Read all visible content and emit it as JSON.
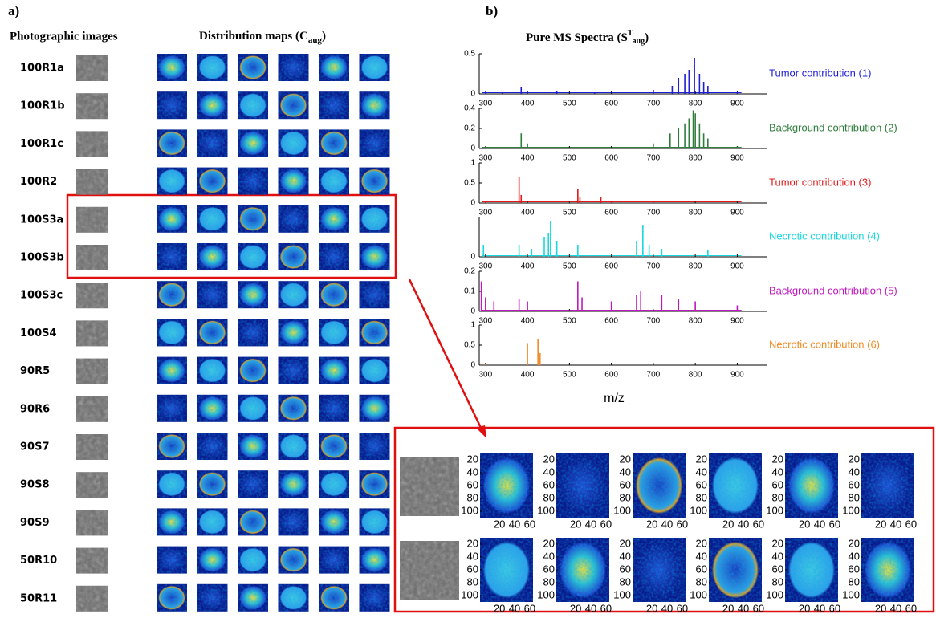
{
  "panel_a": {
    "label": "a)",
    "photo_heading": "Photographic images",
    "maps_heading": "Distribution maps (C",
    "maps_heading_sub": "aug",
    "maps_heading_end": ")",
    "samples": [
      "100R1a",
      "100R1b",
      "100R1c",
      "100R2",
      "100S3a",
      "100S3b",
      "100S3c",
      "100S4",
      "90R5",
      "90R6",
      "90S7",
      "90S8",
      "90S9",
      "50R10",
      "50R11"
    ]
  },
  "inset": {
    "yticks": [
      20,
      40,
      60,
      80,
      100
    ],
    "xticks": [
      20,
      40,
      60
    ]
  },
  "panel_b": {
    "label": "b)",
    "title": "Pure MS Spectra (S",
    "title_sup": "T",
    "title_sub": "aug",
    "title_end": ")",
    "xlabel": "m/z",
    "xlim": [
      285,
      970
    ],
    "xticks": [
      300,
      400,
      500,
      600,
      700,
      800,
      900
    ],
    "panels": [
      {
        "name": "Tumor contribution (1)",
        "color": "#1f1fd6",
        "ylim": [
          0,
          0.5
        ],
        "yticks": [
          0,
          0.5
        ],
        "x": [
          300,
          340,
          385,
          400,
          470,
          560,
          700,
          745,
          760,
          775,
          785,
          798,
          810,
          820,
          830,
          900
        ],
        "values": [
          0.02,
          0.02,
          0.08,
          0.03,
          0.03,
          0.02,
          0.05,
          0.1,
          0.2,
          0.25,
          0.3,
          0.45,
          0.25,
          0.15,
          0.1,
          0.02
        ]
      },
      {
        "name": "Background contribution (2)",
        "color": "#2e7d3a",
        "ylim": [
          0,
          0.4
        ],
        "yticks": [
          0,
          0.2,
          0.4
        ],
        "x": [
          300,
          385,
          400,
          700,
          740,
          760,
          775,
          785,
          795,
          800,
          810,
          820,
          830,
          900
        ],
        "values": [
          0.02,
          0.15,
          0.05,
          0.05,
          0.15,
          0.2,
          0.25,
          0.3,
          0.38,
          0.35,
          0.25,
          0.15,
          0.1,
          0.02
        ]
      },
      {
        "name": "Tumor contribution (3)",
        "color": "#e01818",
        "ylim": [
          0,
          1
        ],
        "yticks": [
          0,
          0.5,
          1
        ],
        "x": [
          300,
          380,
          385,
          520,
          525,
          575,
          600,
          700
        ],
        "values": [
          0.05,
          0.65,
          0.2,
          0.35,
          0.15,
          0.15,
          0.05,
          0.05
        ]
      },
      {
        "name": "Necrotic  contribution (4)",
        "color": "#18d8e0",
        "ylim": [
          0,
          0.5
        ],
        "yticks": [
          0
        ],
        "x": [
          295,
          380,
          410,
          440,
          450,
          455,
          470,
          520,
          660,
          675,
          690,
          720,
          830
        ],
        "values": [
          0.15,
          0.15,
          0.1,
          0.25,
          0.3,
          0.45,
          0.2,
          0.15,
          0.2,
          0.4,
          0.15,
          0.1,
          0.08
        ]
      },
      {
        "name": "Background contribution (5)",
        "color": "#c018c0",
        "ylim": [
          0,
          0.2
        ],
        "yticks": [
          0,
          0.1,
          0.2
        ],
        "x": [
          290,
          300,
          320,
          380,
          400,
          520,
          530,
          600,
          660,
          670,
          720,
          760,
          800,
          900
        ],
        "values": [
          0.15,
          0.07,
          0.05,
          0.06,
          0.05,
          0.15,
          0.07,
          0.05,
          0.08,
          0.1,
          0.08,
          0.06,
          0.05,
          0.03
        ]
      },
      {
        "name": "Necrotic  contribution (6)",
        "color": "#f08c28",
        "ylim": [
          0,
          1
        ],
        "yticks": [
          0,
          0.5,
          1
        ],
        "x": [
          300,
          400,
          425,
          430
        ],
        "values": [
          0.02,
          0.55,
          0.65,
          0.3
        ]
      }
    ]
  }
}
